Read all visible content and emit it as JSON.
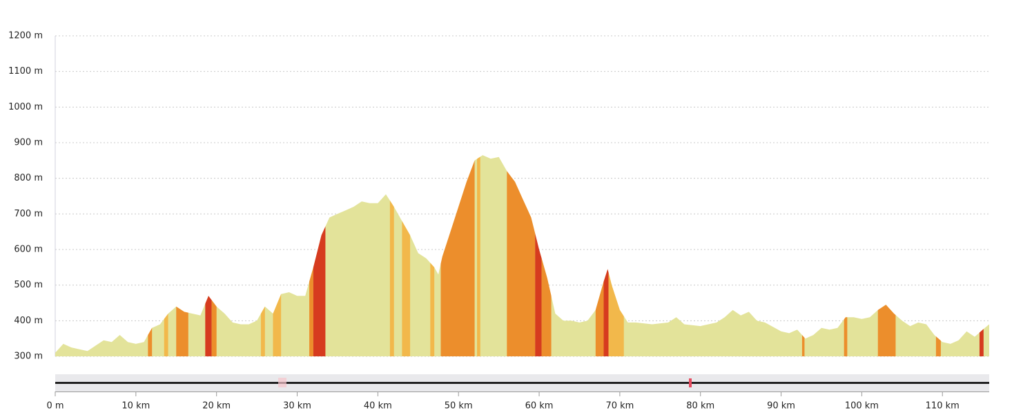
{
  "chart_data": {
    "type": "area",
    "x": [
      0,
      1,
      2,
      3,
      4,
      5,
      6,
      7,
      8,
      9,
      10,
      11,
      12,
      13,
      14,
      15,
      16,
      17,
      18,
      19,
      20,
      21,
      22,
      23,
      24,
      25,
      26,
      27,
      28,
      29,
      30,
      31,
      32,
      33,
      34,
      35,
      36,
      37,
      38,
      39,
      40,
      41,
      42,
      43,
      44,
      45,
      46,
      47,
      47.5,
      48,
      49,
      50,
      51,
      52,
      53,
      54,
      55,
      56,
      57,
      58,
      59,
      60,
      61,
      62,
      63,
      64,
      65,
      66,
      67,
      68,
      68.5,
      69,
      70,
      71,
      72,
      74,
      76,
      77,
      78,
      80,
      82,
      83,
      84,
      85,
      86,
      87,
      88,
      90,
      91,
      92,
      93,
      94,
      95,
      96,
      97,
      98,
      99,
      100,
      101,
      102,
      103,
      104,
      105,
      106,
      107,
      108,
      109,
      110,
      111,
      112,
      113,
      114,
      115,
      115.8
    ],
    "values": [
      310,
      335,
      325,
      320,
      315,
      330,
      345,
      340,
      360,
      340,
      335,
      340,
      380,
      390,
      420,
      440,
      425,
      420,
      415,
      470,
      440,
      420,
      395,
      390,
      390,
      400,
      440,
      420,
      475,
      480,
      470,
      470,
      550,
      640,
      690,
      700,
      710,
      720,
      735,
      730,
      730,
      755,
      720,
      680,
      640,
      590,
      575,
      550,
      530,
      580,
      650,
      720,
      790,
      850,
      865,
      855,
      860,
      820,
      790,
      740,
      690,
      600,
      520,
      420,
      400,
      400,
      395,
      400,
      430,
      510,
      545,
      500,
      430,
      395,
      395,
      390,
      395,
      410,
      390,
      385,
      395,
      410,
      430,
      415,
      425,
      400,
      395,
      370,
      365,
      375,
      350,
      360,
      380,
      375,
      380,
      410,
      410,
      405,
      410,
      430,
      445,
      420,
      400,
      385,
      395,
      390,
      360,
      340,
      335,
      345,
      370,
      355,
      375,
      390
    ],
    "color": "#e3e39a",
    "segments": [
      {
        "start": 11.5,
        "end": 12,
        "color": "#ec8e2c"
      },
      {
        "start": 13.5,
        "end": 14,
        "color": "#f2b84b"
      },
      {
        "start": 15,
        "end": 16.5,
        "color": "#ec8e2c"
      },
      {
        "start": 18.6,
        "end": 19.4,
        "color": "#d63b1f"
      },
      {
        "start": 19.4,
        "end": 20,
        "color": "#ec8e2c"
      },
      {
        "start": 25.5,
        "end": 26,
        "color": "#f2b84b"
      },
      {
        "start": 27,
        "end": 28,
        "color": "#f2b84b"
      },
      {
        "start": 31.5,
        "end": 32,
        "color": "#ec8e2c"
      },
      {
        "start": 32,
        "end": 33.5,
        "color": "#d63b1f"
      },
      {
        "start": 41.5,
        "end": 42,
        "color": "#f2b84b"
      },
      {
        "start": 43,
        "end": 44,
        "color": "#f2b84b"
      },
      {
        "start": 46.5,
        "end": 47,
        "color": "#f2b84b"
      },
      {
        "start": 47.8,
        "end": 52,
        "color": "#ec8e2c"
      },
      {
        "start": 52.3,
        "end": 52.7,
        "color": "#f2b84b"
      },
      {
        "start": 56,
        "end": 59.5,
        "color": "#ec8e2c"
      },
      {
        "start": 59.5,
        "end": 60.3,
        "color": "#d63b1f"
      },
      {
        "start": 60.3,
        "end": 61.5,
        "color": "#ec8e2c"
      },
      {
        "start": 67,
        "end": 68,
        "color": "#ec8e2c"
      },
      {
        "start": 68,
        "end": 68.6,
        "color": "#d63b1f"
      },
      {
        "start": 68.6,
        "end": 70.5,
        "color": "#f2b84b"
      },
      {
        "start": 92.6,
        "end": 92.9,
        "color": "#ec8e2c"
      },
      {
        "start": 97.8,
        "end": 98.2,
        "color": "#ec8e2c"
      },
      {
        "start": 102,
        "end": 104.2,
        "color": "#ec8e2c"
      },
      {
        "start": 109.2,
        "end": 109.8,
        "color": "#ec8e2c"
      },
      {
        "start": 114.6,
        "end": 115.1,
        "color": "#d63b1f"
      }
    ],
    "xlim": [
      0,
      115.8
    ],
    "ylim": [
      300,
      1200
    ],
    "xticks": [
      {
        "value": 0,
        "label": "0 m"
      },
      {
        "value": 10,
        "label": "10 km"
      },
      {
        "value": 20,
        "label": "20 km"
      },
      {
        "value": 30,
        "label": "30 km"
      },
      {
        "value": 40,
        "label": "40 km"
      },
      {
        "value": 50,
        "label": "50 km"
      },
      {
        "value": 60,
        "label": "60 km"
      },
      {
        "value": 70,
        "label": "70 km"
      },
      {
        "value": 80,
        "label": "80 km"
      },
      {
        "value": 90,
        "label": "90 km"
      },
      {
        "value": 100,
        "label": "100 km"
      },
      {
        "value": 110,
        "label": "110 km"
      }
    ],
    "yticks": [
      {
        "value": 300,
        "label": "300 m"
      },
      {
        "value": 400,
        "label": "400 m"
      },
      {
        "value": 500,
        "label": "500 m"
      },
      {
        "value": 600,
        "label": "600 m"
      },
      {
        "value": 700,
        "label": "700 m"
      },
      {
        "value": 800,
        "label": "800 m"
      },
      {
        "value": 900,
        "label": "900 m"
      },
      {
        "value": 1000,
        "label": "1000 m"
      },
      {
        "value": 1100,
        "label": "1100 m"
      },
      {
        "value": 1200,
        "label": "1200 m"
      }
    ],
    "grid": true
  }
}
